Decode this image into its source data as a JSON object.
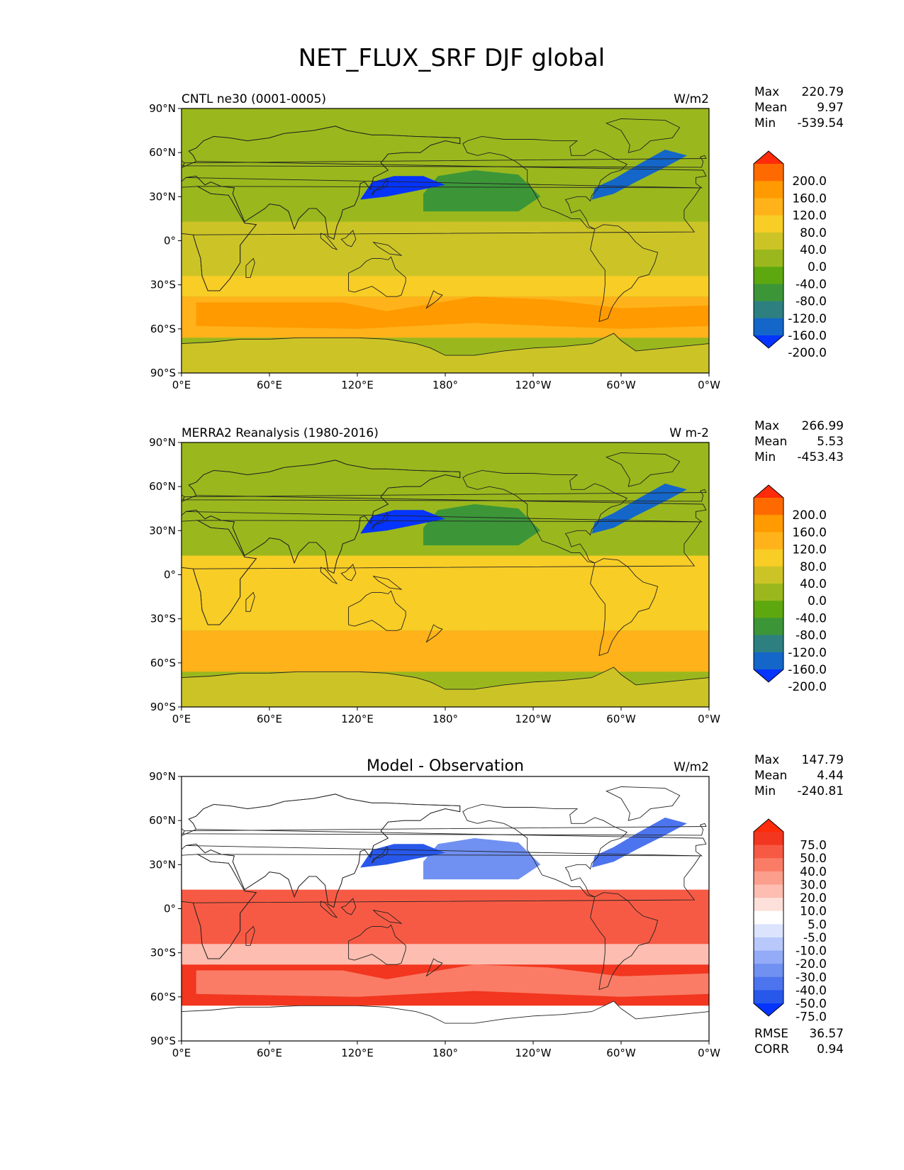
{
  "title": "NET_FLUX_SRF DJF global",
  "lat_ticks": [
    "90°N",
    "60°N",
    "30°N",
    "0°",
    "30°S",
    "60°S",
    "90°S"
  ],
  "lon_ticks": [
    "0°E",
    "60°E",
    "120°E",
    "180°",
    "120°W",
    "60°W",
    "0°W"
  ],
  "panels": [
    {
      "left_title": "CNTL ne30 (0001-0005)",
      "center_title": "",
      "units": "W/m2",
      "stats": [
        {
          "label": "Max",
          "value": "220.79"
        },
        {
          "label": "Mean",
          "value": "9.97"
        },
        {
          "label": "Min",
          "value": "-539.54"
        }
      ],
      "colorbar": {
        "levels": [
          "200.0",
          "160.0",
          "120.0",
          "80.0",
          "40.0",
          "0.0",
          "-40.0",
          "-80.0",
          "-120.0",
          "-160.0",
          "-200.0"
        ],
        "colors": [
          "#ff2b0a",
          "#ff6a00",
          "#ff9a00",
          "#ffb21a",
          "#f8cd26",
          "#ccc427",
          "#9ab81d",
          "#5ea80f",
          "#3c9638",
          "#2e8080",
          "#1466c8",
          "#0534ff"
        ],
        "extend": "both"
      },
      "fill": {
        "main": "#9ab81d",
        "tropics": "#ccc427",
        "subtropics": "#f8cd26",
        "southern": "#ffb21a",
        "storm": "#ff9a00",
        "antarctic": "#ccc427",
        "kuroshio": "#0534ff",
        "gulfstream": "#1466c8",
        "npac": "#3c9638"
      }
    },
    {
      "left_title": "MERRA2 Reanalysis (1980-2016)",
      "center_title": "",
      "units": "W m-2",
      "stats": [
        {
          "label": "Max",
          "value": "266.99"
        },
        {
          "label": "Mean",
          "value": "5.53"
        },
        {
          "label": "Min",
          "value": "-453.43"
        }
      ],
      "colorbar": {
        "levels": [
          "200.0",
          "160.0",
          "120.0",
          "80.0",
          "40.0",
          "0.0",
          "-40.0",
          "-80.0",
          "-120.0",
          "-160.0",
          "-200.0"
        ],
        "colors": [
          "#ff2b0a",
          "#ff6a00",
          "#ff9a00",
          "#ffb21a",
          "#f8cd26",
          "#ccc427",
          "#9ab81d",
          "#5ea80f",
          "#3c9638",
          "#2e8080",
          "#1466c8",
          "#0534ff"
        ],
        "extend": "both"
      },
      "fill": {
        "main": "#9ab81d",
        "tropics": "#f8cd26",
        "subtropics": "#f8cd26",
        "southern": "#ffb21a",
        "storm": "#ffb21a",
        "antarctic": "#ccc427",
        "kuroshio": "#0534ff",
        "gulfstream": "#1466c8",
        "npac": "#3c9638"
      }
    },
    {
      "left_title": "",
      "center_title": "Model - Observation",
      "units": "W/m2",
      "stats": [
        {
          "label": "Max",
          "value": "147.79"
        },
        {
          "label": "Mean",
          "value": "4.44"
        },
        {
          "label": "Min",
          "value": "-240.81"
        }
      ],
      "extra_stats": [
        {
          "label": "RMSE",
          "value": "36.57"
        },
        {
          "label": "CORR",
          "value": "0.94"
        }
      ],
      "colorbar": {
        "levels": [
          "75.0",
          "50.0",
          "40.0",
          "30.0",
          "20.0",
          "10.0",
          "5.0",
          "-5.0",
          "-10.0",
          "-20.0",
          "-30.0",
          "-40.0",
          "-50.0",
          "-75.0"
        ],
        "colors": [
          "#ff2b0a",
          "#f2361f",
          "#f75a44",
          "#fa7c66",
          "#fc9e8c",
          "#fdbdb0",
          "#fde0d9",
          "#ffffff",
          "#dce4fd",
          "#b8c8fb",
          "#94acf7",
          "#7090f2",
          "#4c74ee",
          "#2758ea",
          "#0534ff"
        ],
        "extend": "both"
      },
      "fill": {
        "main": "#ffffff",
        "tropics": "#f75a44",
        "subtropics": "#fdbdb0",
        "southern": "#f2361f",
        "storm": "#fa7c66",
        "antarctic": "#ffffff",
        "kuroshio": "#2758ea",
        "gulfstream": "#4c74ee",
        "npac": "#7090f2"
      }
    }
  ]
}
